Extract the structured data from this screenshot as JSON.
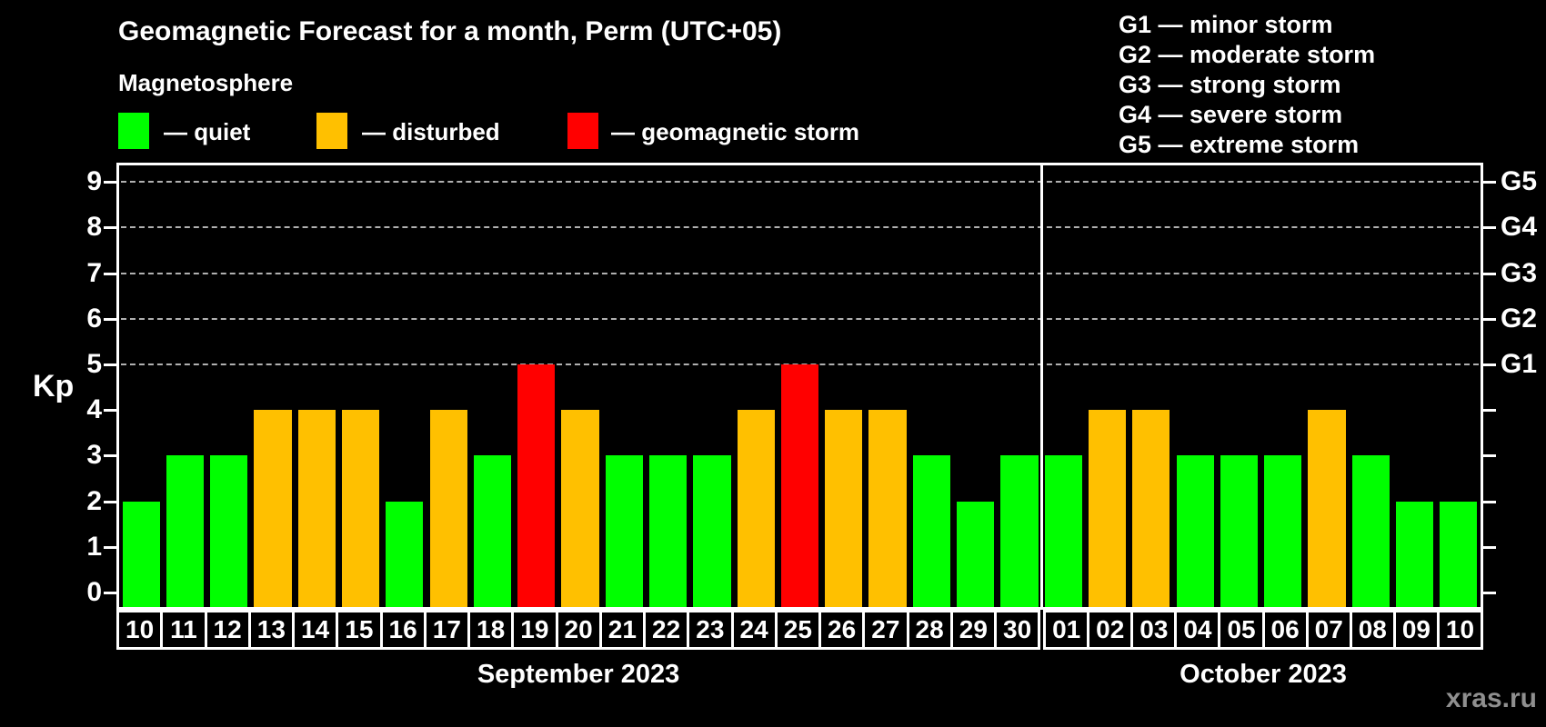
{
  "title": "Geomagnetic Forecast for a month, Perm (UTC+05)",
  "subtitle": "Magnetosphere",
  "legend": {
    "items": [
      {
        "key": "quiet",
        "label": "— quiet",
        "color": "#00ff00"
      },
      {
        "key": "disturbed",
        "label": "— disturbed",
        "color": "#ffc000"
      },
      {
        "key": "storm",
        "label": "— geomagnetic storm",
        "color": "#ff0000"
      }
    ]
  },
  "g_legend": {
    "items": [
      "G1 — minor storm",
      "G2 — moderate storm",
      "G3 — strong storm",
      "G4 — severe storm",
      "G5 — extreme storm"
    ]
  },
  "watermark": "xras.ru",
  "chart_data": {
    "type": "bar",
    "title": "Geomagnetic Forecast for a month, Perm (UTC+05)",
    "ylabel": "Kp",
    "ylim": [
      0,
      9
    ],
    "yticks": [
      0,
      1,
      2,
      3,
      4,
      5,
      6,
      7,
      8,
      9
    ],
    "gridlines_at": [
      5,
      6,
      7,
      8,
      9
    ],
    "grid": true,
    "legend_position": "top",
    "right_axis": [
      {
        "kp": 5,
        "label": "G1"
      },
      {
        "kp": 6,
        "label": "G2"
      },
      {
        "kp": 7,
        "label": "G3"
      },
      {
        "kp": 8,
        "label": "G4"
      },
      {
        "kp": 9,
        "label": "G5"
      }
    ],
    "status_colors": {
      "quiet": "#00ff00",
      "disturbed": "#ffc000",
      "storm": "#ff0000"
    },
    "months": [
      {
        "label": "September 2023",
        "days": [
          {
            "day": "10",
            "kp": 2,
            "status": "quiet"
          },
          {
            "day": "11",
            "kp": 3,
            "status": "quiet"
          },
          {
            "day": "12",
            "kp": 3,
            "status": "quiet"
          },
          {
            "day": "13",
            "kp": 4,
            "status": "disturbed"
          },
          {
            "day": "14",
            "kp": 4,
            "status": "disturbed"
          },
          {
            "day": "15",
            "kp": 4,
            "status": "disturbed"
          },
          {
            "day": "16",
            "kp": 2,
            "status": "quiet"
          },
          {
            "day": "17",
            "kp": 4,
            "status": "disturbed"
          },
          {
            "day": "18",
            "kp": 3,
            "status": "quiet"
          },
          {
            "day": "19",
            "kp": 5,
            "status": "storm"
          },
          {
            "day": "20",
            "kp": 4,
            "status": "disturbed"
          },
          {
            "day": "21",
            "kp": 3,
            "status": "quiet"
          },
          {
            "day": "22",
            "kp": 3,
            "status": "quiet"
          },
          {
            "day": "23",
            "kp": 3,
            "status": "quiet"
          },
          {
            "day": "24",
            "kp": 4,
            "status": "disturbed"
          },
          {
            "day": "25",
            "kp": 5,
            "status": "storm"
          },
          {
            "day": "26",
            "kp": 4,
            "status": "disturbed"
          },
          {
            "day": "27",
            "kp": 4,
            "status": "disturbed"
          },
          {
            "day": "28",
            "kp": 3,
            "status": "quiet"
          },
          {
            "day": "29",
            "kp": 2,
            "status": "quiet"
          },
          {
            "day": "30",
            "kp": 3,
            "status": "quiet"
          }
        ]
      },
      {
        "label": "October 2023",
        "days": [
          {
            "day": "01",
            "kp": 3,
            "status": "quiet"
          },
          {
            "day": "02",
            "kp": 4,
            "status": "disturbed"
          },
          {
            "day": "03",
            "kp": 4,
            "status": "disturbed"
          },
          {
            "day": "04",
            "kp": 3,
            "status": "quiet"
          },
          {
            "day": "05",
            "kp": 3,
            "status": "quiet"
          },
          {
            "day": "06",
            "kp": 3,
            "status": "quiet"
          },
          {
            "day": "07",
            "kp": 4,
            "status": "disturbed"
          },
          {
            "day": "08",
            "kp": 3,
            "status": "quiet"
          },
          {
            "day": "09",
            "kp": 2,
            "status": "quiet"
          },
          {
            "day": "10",
            "kp": 2,
            "status": "quiet"
          }
        ]
      }
    ]
  }
}
